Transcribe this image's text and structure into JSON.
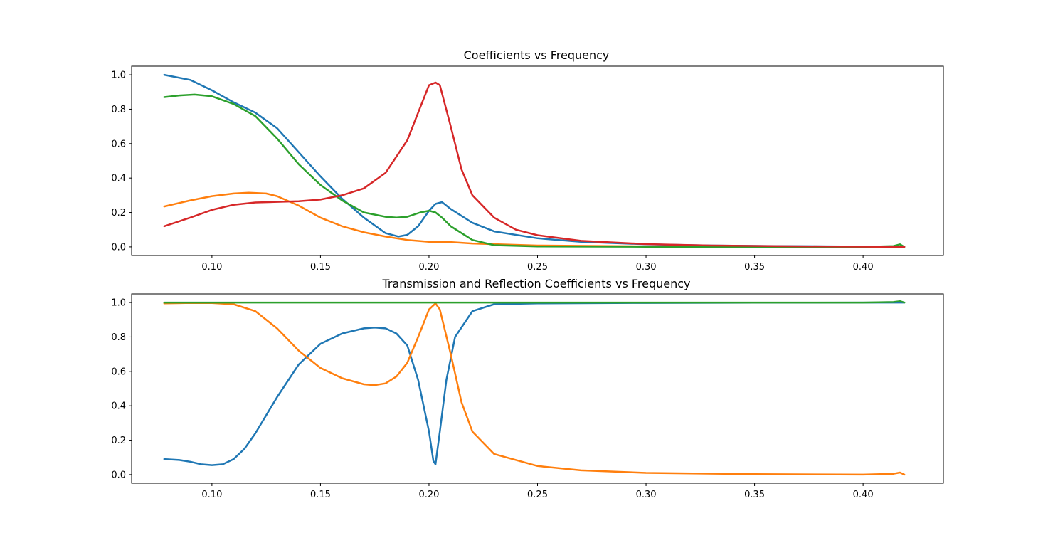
{
  "chart_data": [
    {
      "type": "line",
      "title": "Coefficients vs Frequency",
      "xlabel": "",
      "ylabel": "",
      "xlim": [
        0.063,
        0.437
      ],
      "ylim": [
        -0.05,
        1.05
      ],
      "xticks": [
        0.1,
        0.15,
        0.2,
        0.25,
        0.3,
        0.35,
        0.4
      ],
      "xtick_labels": [
        "0.10",
        "0.15",
        "0.20",
        "0.25",
        "0.30",
        "0.35",
        "0.40"
      ],
      "yticks": [
        0.0,
        0.2,
        0.4,
        0.6,
        0.8,
        1.0
      ],
      "ytick_labels": [
        "0.0",
        "0.2",
        "0.4",
        "0.6",
        "0.8",
        "1.0"
      ],
      "grid": false,
      "series": [
        {
          "color": "#1f77b4",
          "x": [
            0.078,
            0.09,
            0.1,
            0.11,
            0.12,
            0.13,
            0.14,
            0.15,
            0.16,
            0.17,
            0.18,
            0.186,
            0.19,
            0.195,
            0.2,
            0.203,
            0.206,
            0.21,
            0.22,
            0.23,
            0.25,
            0.27,
            0.3,
            0.33,
            0.36,
            0.39,
            0.415,
            0.419
          ],
          "y": [
            1.0,
            0.97,
            0.91,
            0.84,
            0.78,
            0.69,
            0.55,
            0.41,
            0.28,
            0.17,
            0.08,
            0.06,
            0.07,
            0.12,
            0.21,
            0.25,
            0.26,
            0.22,
            0.14,
            0.09,
            0.05,
            0.03,
            0.015,
            0.008,
            0.005,
            0.003,
            0.003,
            0.0
          ]
        },
        {
          "color": "#ff7f0e",
          "x": [
            0.078,
            0.09,
            0.1,
            0.11,
            0.117,
            0.125,
            0.13,
            0.14,
            0.15,
            0.16,
            0.17,
            0.18,
            0.19,
            0.2,
            0.21,
            0.22,
            0.25,
            0.3,
            0.35,
            0.4,
            0.419
          ],
          "y": [
            0.235,
            0.27,
            0.295,
            0.31,
            0.315,
            0.31,
            0.295,
            0.24,
            0.17,
            0.12,
            0.085,
            0.06,
            0.04,
            0.03,
            0.028,
            0.02,
            0.008,
            0.003,
            0.001,
            0.0,
            0.0
          ]
        },
        {
          "color": "#2ca02c",
          "x": [
            0.078,
            0.085,
            0.092,
            0.1,
            0.11,
            0.12,
            0.13,
            0.14,
            0.15,
            0.16,
            0.17,
            0.18,
            0.185,
            0.19,
            0.196,
            0.2,
            0.203,
            0.206,
            0.21,
            0.22,
            0.23,
            0.25,
            0.3,
            0.35,
            0.4,
            0.414,
            0.417,
            0.419
          ],
          "y": [
            0.87,
            0.88,
            0.885,
            0.875,
            0.83,
            0.76,
            0.63,
            0.48,
            0.36,
            0.27,
            0.2,
            0.175,
            0.17,
            0.175,
            0.2,
            0.21,
            0.2,
            0.17,
            0.12,
            0.04,
            0.01,
            0.003,
            0.001,
            0.0,
            0.0,
            0.005,
            0.015,
            0.0
          ]
        },
        {
          "color": "#d62728",
          "x": [
            0.078,
            0.09,
            0.1,
            0.11,
            0.12,
            0.14,
            0.15,
            0.16,
            0.17,
            0.18,
            0.19,
            0.195,
            0.2,
            0.203,
            0.205,
            0.21,
            0.215,
            0.22,
            0.23,
            0.24,
            0.25,
            0.27,
            0.3,
            0.33,
            0.36,
            0.39,
            0.419
          ],
          "y": [
            0.12,
            0.17,
            0.215,
            0.245,
            0.258,
            0.265,
            0.275,
            0.3,
            0.34,
            0.43,
            0.62,
            0.78,
            0.94,
            0.955,
            0.94,
            0.7,
            0.45,
            0.3,
            0.17,
            0.1,
            0.068,
            0.035,
            0.016,
            0.008,
            0.004,
            0.002,
            0.0
          ]
        }
      ]
    },
    {
      "type": "line",
      "title": "Transmission and Reflection Coefficients vs Frequency",
      "xlabel": "",
      "ylabel": "",
      "xlim": [
        0.063,
        0.437
      ],
      "ylim": [
        -0.05,
        1.05
      ],
      "xticks": [
        0.1,
        0.15,
        0.2,
        0.25,
        0.3,
        0.35,
        0.4
      ],
      "xtick_labels": [
        "0.10",
        "0.15",
        "0.20",
        "0.25",
        "0.30",
        "0.35",
        "0.40"
      ],
      "yticks": [
        0.0,
        0.2,
        0.4,
        0.6,
        0.8,
        1.0
      ],
      "ytick_labels": [
        "0.0",
        "0.2",
        "0.4",
        "0.6",
        "0.8",
        "1.0"
      ],
      "grid": false,
      "series": [
        {
          "color": "#1f77b4",
          "x": [
            0.078,
            0.085,
            0.09,
            0.095,
            0.1,
            0.105,
            0.11,
            0.115,
            0.12,
            0.13,
            0.14,
            0.15,
            0.16,
            0.17,
            0.175,
            0.18,
            0.185,
            0.19,
            0.195,
            0.2,
            0.202,
            0.203,
            0.205,
            0.208,
            0.212,
            0.22,
            0.23,
            0.25,
            0.3,
            0.35,
            0.4,
            0.418,
            0.419
          ],
          "y": [
            0.09,
            0.085,
            0.075,
            0.06,
            0.055,
            0.06,
            0.09,
            0.15,
            0.24,
            0.45,
            0.64,
            0.76,
            0.82,
            0.85,
            0.855,
            0.85,
            0.82,
            0.75,
            0.55,
            0.25,
            0.08,
            0.06,
            0.25,
            0.55,
            0.8,
            0.95,
            0.99,
            0.995,
            0.998,
            0.999,
            1.0,
            1.0,
            1.0
          ]
        },
        {
          "color": "#ff7f0e",
          "x": [
            0.078,
            0.09,
            0.1,
            0.11,
            0.12,
            0.13,
            0.14,
            0.15,
            0.16,
            0.17,
            0.175,
            0.18,
            0.185,
            0.19,
            0.195,
            0.2,
            0.203,
            0.205,
            0.21,
            0.215,
            0.22,
            0.23,
            0.25,
            0.27,
            0.3,
            0.35,
            0.4,
            0.414,
            0.417,
            0.419
          ],
          "y": [
            0.995,
            0.998,
            0.997,
            0.99,
            0.95,
            0.85,
            0.72,
            0.62,
            0.56,
            0.525,
            0.52,
            0.53,
            0.57,
            0.65,
            0.8,
            0.96,
            0.995,
            0.96,
            0.7,
            0.42,
            0.25,
            0.12,
            0.05,
            0.025,
            0.01,
            0.003,
            0.0,
            0.005,
            0.012,
            0.0
          ]
        },
        {
          "color": "#2ca02c",
          "x": [
            0.078,
            0.15,
            0.2,
            0.25,
            0.3,
            0.35,
            0.4,
            0.414,
            0.417,
            0.419
          ],
          "y": [
            1.0,
            1.0,
            1.0,
            1.0,
            1.0,
            1.0,
            1.0,
            1.003,
            1.008,
            1.0
          ]
        }
      ]
    }
  ]
}
